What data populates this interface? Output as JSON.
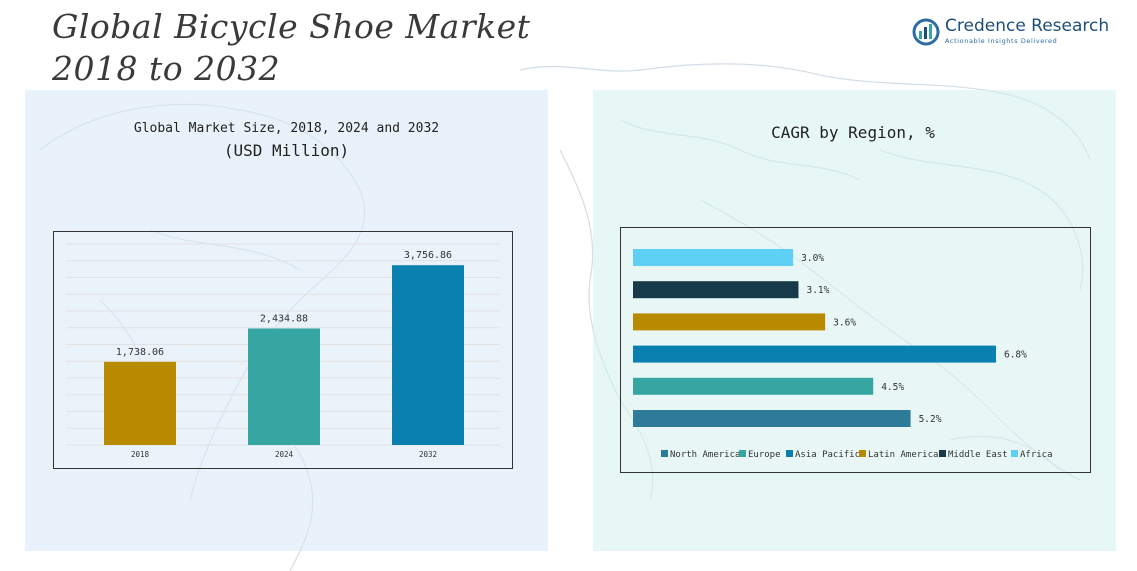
{
  "page": {
    "title_line1": "Global Bicycle Shoe Market",
    "title_line2": "2018 to 2032"
  },
  "brand": {
    "name": "Credence Research",
    "tagline": "Actionable Insights Delivered"
  },
  "colors": {
    "north_america": "#2e7a99",
    "europe": "#35a6a2",
    "asia_pacific": "#0a80b0",
    "latin_america": "#b88a00",
    "middle_east": "#163a4a",
    "africa": "#5fd0f5"
  },
  "chart_data": [
    {
      "type": "bar",
      "title": "Global Market Size, 2018, 2024 and 2032",
      "subtitle": "(USD Million)",
      "categories": [
        "2018",
        "2024",
        "2032"
      ],
      "values": [
        1738.06,
        2434.88,
        3756.86
      ],
      "value_labels": [
        "1,738.06",
        "2,434.88",
        "3,756.86"
      ],
      "bar_colors": [
        "#b88a00",
        "#35a6a2",
        "#0a80b0"
      ],
      "ylim": [
        0,
        4200
      ],
      "grid": true
    },
    {
      "type": "bar",
      "orientation": "horizontal",
      "title": "CAGR by Region, %",
      "categories": [
        "Africa",
        "Middle East",
        "Latin America",
        "Asia Pacific",
        "Europe",
        "North America"
      ],
      "values": [
        3.0,
        3.1,
        3.6,
        6.8,
        4.5,
        5.2
      ],
      "value_labels": [
        "3.0%",
        "3.1%",
        "3.6%",
        "6.8%",
        "4.5%",
        "5.2%"
      ],
      "bar_colors": [
        "#5fd0f5",
        "#163a4a",
        "#b88a00",
        "#0a80b0",
        "#35a6a2",
        "#2e7a99"
      ],
      "xlim": [
        0,
        7.1
      ],
      "legend_position": "bottom",
      "legend": [
        "North America",
        "Europe",
        "Asia Pacific",
        "Latin America",
        "Middle East",
        "Africa"
      ],
      "legend_colors": [
        "#2e7a99",
        "#35a6a2",
        "#0a80b0",
        "#b88a00",
        "#163a4a",
        "#5fd0f5"
      ]
    }
  ]
}
